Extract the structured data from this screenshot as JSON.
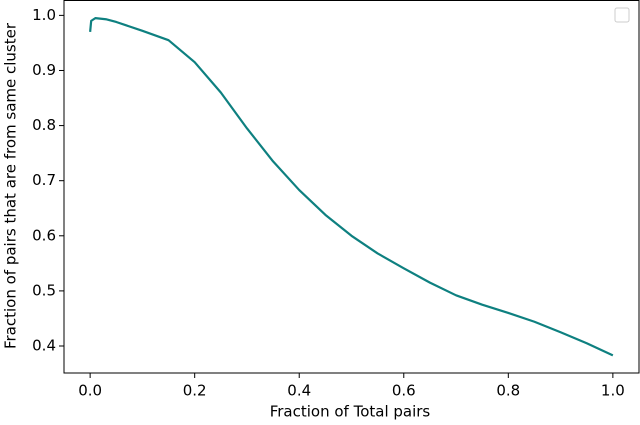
{
  "chart_data": {
    "type": "line",
    "xlabel": "Fraction of Total pairs",
    "ylabel": "Fraction of pairs that are from same cluster",
    "x": [
      0,
      0.002,
      0.01,
      0.03,
      0.05,
      0.1,
      0.15,
      0.2,
      0.25,
      0.3,
      0.35,
      0.4,
      0.45,
      0.5,
      0.55,
      0.6,
      0.65,
      0.7,
      0.75,
      0.8,
      0.85,
      0.9,
      0.95,
      1.0
    ],
    "series": [
      {
        "color": "#0e8080",
        "values": [
          0.97,
          0.99,
          0.995,
          0.993,
          0.988,
          0.972,
          0.955,
          0.915,
          0.86,
          0.795,
          0.735,
          0.683,
          0.638,
          0.6,
          0.568,
          0.541,
          0.515,
          0.492,
          0.475,
          0.46,
          0.444,
          0.425,
          0.405,
          0.383
        ]
      }
    ],
    "xlim": [
      -0.05,
      1.05
    ],
    "ylim": [
      0.351,
      1.027
    ],
    "xticks": [
      {
        "value": 0,
        "label": "0.0"
      },
      {
        "value": 0.2,
        "label": "0.2"
      },
      {
        "value": 0.4,
        "label": "0.4"
      },
      {
        "value": 0.6,
        "label": "0.6"
      },
      {
        "value": 0.8,
        "label": "0.8"
      },
      {
        "value": 1,
        "label": "1.0"
      }
    ],
    "yticks": [
      {
        "value": 0.4,
        "label": "0.4"
      },
      {
        "value": 0.5,
        "label": "0.5"
      },
      {
        "value": 0.6,
        "label": "0.6"
      },
      {
        "value": 0.7,
        "label": "0.7"
      },
      {
        "value": 0.8,
        "label": "0.8"
      },
      {
        "value": 0.9,
        "label": "0.9"
      },
      {
        "value": 1,
        "label": "1.0"
      }
    ],
    "legend": "upper right"
  }
}
